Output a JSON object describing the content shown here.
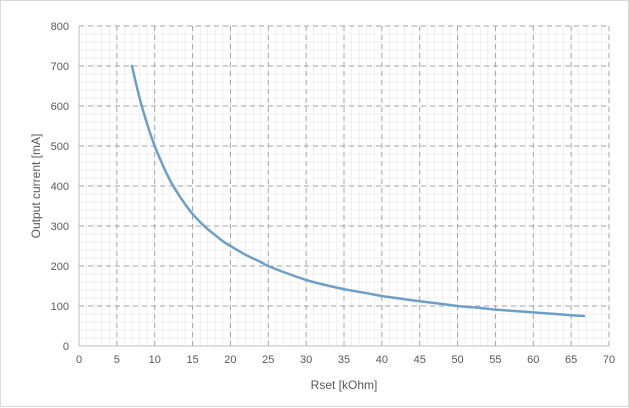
{
  "chart_data": {
    "type": "line",
    "title": "",
    "xlabel": "Rset [kOhm]",
    "ylabel": "Output current [mA]",
    "xlim": [
      0,
      70
    ],
    "ylim": [
      0,
      800
    ],
    "x_major_ticks": [
      0,
      5,
      10,
      15,
      20,
      25,
      30,
      35,
      40,
      45,
      50,
      55,
      60,
      65,
      70
    ],
    "y_major_ticks": [
      0,
      100,
      200,
      300,
      400,
      500,
      600,
      700,
      800
    ],
    "x_tick_labels": [
      "0",
      "5",
      "10",
      "15",
      "20",
      "25",
      "30",
      "35",
      "40",
      "45",
      "50",
      "55",
      "60",
      "65",
      "70"
    ],
    "y_tick_labels": [
      "0",
      "100",
      "200",
      "300",
      "400",
      "500",
      "600",
      "700",
      "800"
    ],
    "x_minor_step": 1,
    "y_minor_step": 20,
    "grid": true,
    "legend": "none",
    "colors": {
      "series": "#6e9fc9",
      "major_grid": "#a6a6a6",
      "minor_grid": "#e6e6e6",
      "axis": "#bfbfbf"
    },
    "series": [
      {
        "x": [
          7,
          8,
          9,
          10,
          11,
          12,
          13,
          14,
          15,
          16,
          17,
          18,
          19,
          20,
          22,
          24,
          25,
          27,
          30,
          32,
          35,
          38,
          40,
          43,
          45,
          48,
          50,
          53,
          55,
          58,
          60,
          63,
          65,
          66.7
        ],
        "y": [
          700,
          620,
          555,
          500,
          455,
          415,
          383,
          355,
          330,
          310,
          292,
          277,
          262,
          250,
          228,
          210,
          200,
          185,
          165,
          155,
          142,
          132,
          125,
          117,
          112,
          105,
          100,
          95,
          91,
          87,
          84,
          80,
          77,
          75
        ]
      }
    ]
  }
}
